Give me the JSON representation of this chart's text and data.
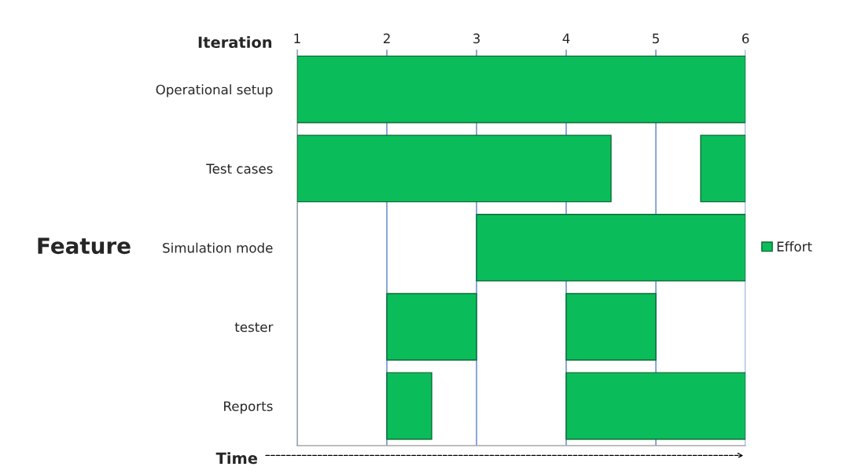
{
  "chart_data": {
    "type": "bar",
    "orientation": "horizontal",
    "xlabel": "Iteration",
    "ylabel": "Feature",
    "categories": [
      "Operational setup",
      "Test cases",
      "Simulation mode",
      "tester",
      "Reports"
    ],
    "series": [
      {
        "name": "Effort",
        "color": "#0bbd5a",
        "values": [
          5,
          3.5,
          3,
          1,
          0.5
        ],
        "base": [
          1,
          1,
          3,
          2,
          2
        ]
      },
      {
        "color": "#0bbd5a",
        "values": [
          null,
          0.5,
          null,
          1,
          2
        ],
        "base": [
          null,
          5.5,
          null,
          4,
          4
        ]
      }
    ],
    "xlim": [
      1,
      6
    ],
    "xticks": [
      1,
      2,
      3,
      4,
      5,
      6
    ],
    "grid": "x",
    "legend": "right",
    "annotations": [
      "Time"
    ]
  }
}
